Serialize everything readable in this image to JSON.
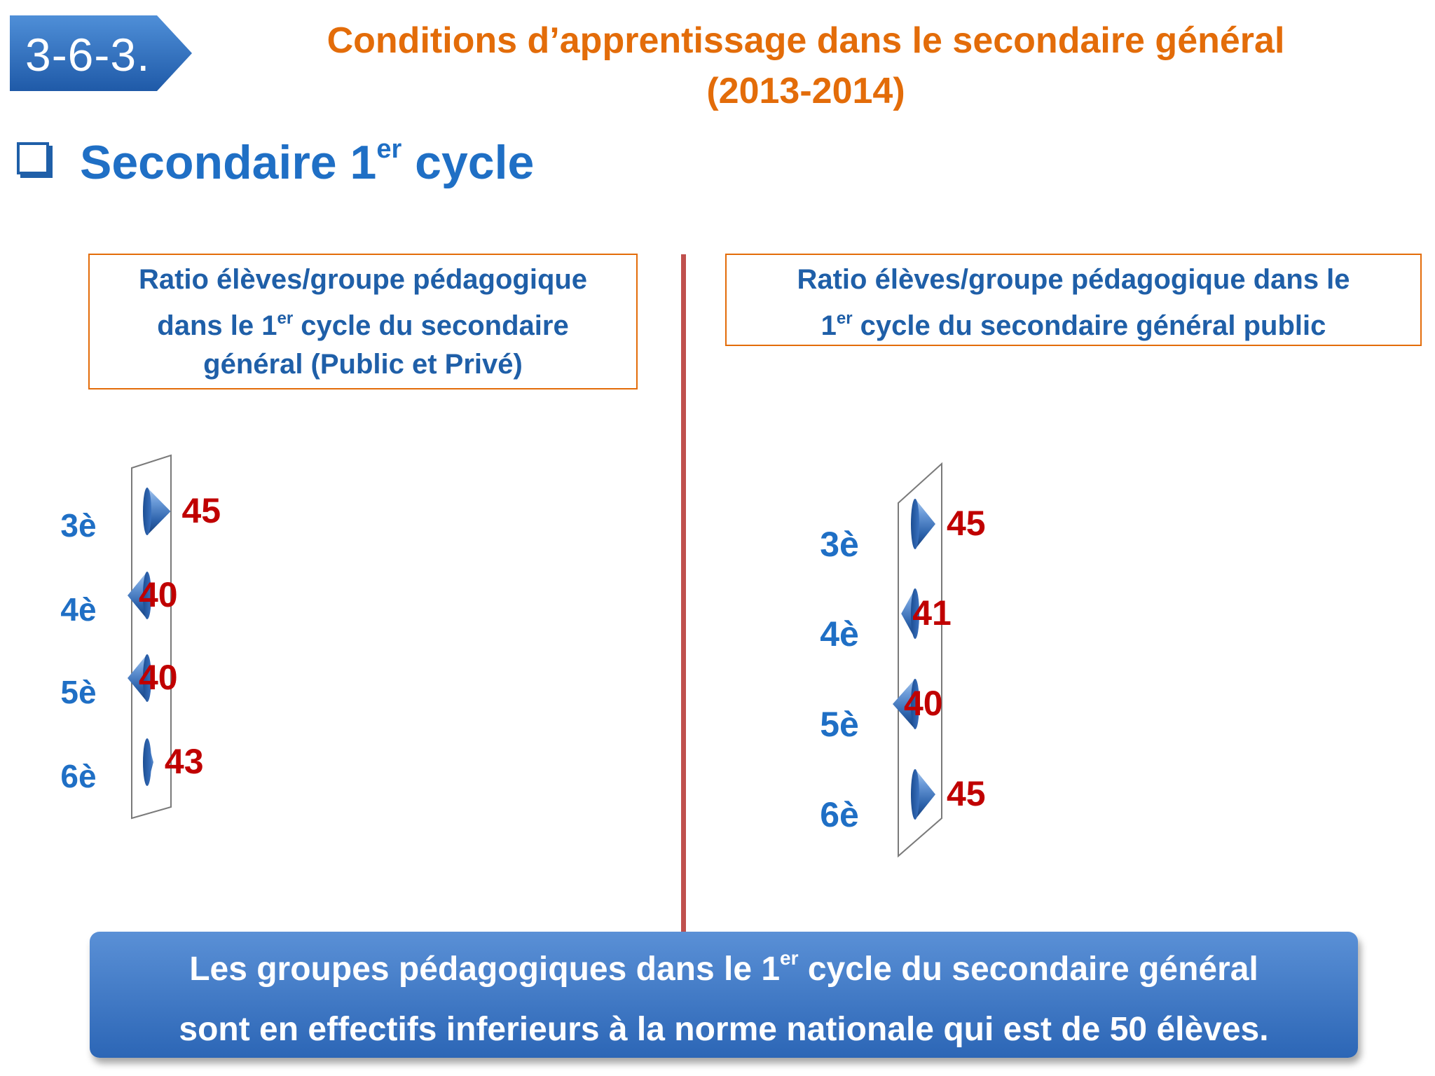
{
  "badge": "3-6-3.",
  "title": {
    "line1": "Conditions d’apprentissage dans le secondaire général",
    "line2": "(2013-2014)"
  },
  "section": {
    "text": "Secondaire 1",
    "sup": "er",
    "after": " cycle"
  },
  "colors": {
    "title": "#e36c09",
    "heading": "#1f6fc5",
    "category": "#1f6fc5",
    "value": "#c00000",
    "divider": "#c0504d",
    "cone": "#2f65ad",
    "conclusion_bg": "#3a77c8"
  },
  "chart_data": [
    {
      "type": "bar",
      "orientation": "horizontal",
      "shape": "cone",
      "title_parts": [
        "Ratio élèves/groupe pédagogique",
        "dans le 1",
        "er",
        " cycle du secondaire",
        "général (Public et Privé)"
      ],
      "categories": [
        "3è",
        "4è",
        "5è",
        "6è"
      ],
      "values": [
        45,
        40,
        40,
        43
      ],
      "data_labels": [
        "45",
        "40",
        "40",
        "43"
      ]
    },
    {
      "type": "bar",
      "orientation": "horizontal",
      "shape": "cone",
      "title_parts": [
        "Ratio élèves/groupe pédagogique dans le",
        "1",
        "er",
        " cycle du secondaire général public"
      ],
      "categories": [
        "3è",
        "4è",
        "5è",
        "6è"
      ],
      "values": [
        45,
        41,
        40,
        45
      ],
      "data_labels": [
        "45",
        "41",
        "40",
        "45"
      ]
    }
  ],
  "conclusion": {
    "l1a": "Les groupes pédagogiques dans le 1",
    "l1sup": "er",
    "l1b": " cycle du secondaire général",
    "l2": "sont en effectifs inferieurs à la norme nationale qui est de 50 élèves."
  }
}
